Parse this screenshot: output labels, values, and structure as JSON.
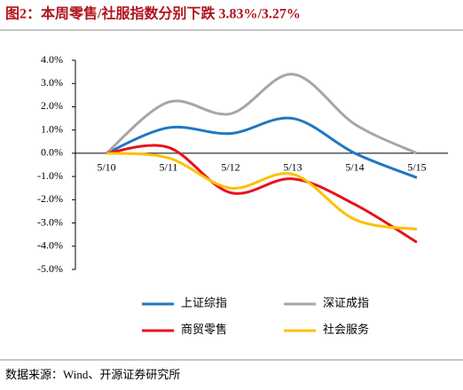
{
  "chart_data": {
    "type": "line",
    "title": "图2：本周零售/社服指数分别下跌 3.83%/3.27%",
    "source": "数据来源：Wind、开源证券研究所",
    "categories": [
      "5/10",
      "5/11",
      "5/12",
      "5/13",
      "5/14",
      "5/15"
    ],
    "series": [
      {
        "name": "上证综指",
        "color": "#1f77c4",
        "values": [
          0,
          1.1,
          0.85,
          1.5,
          0.0,
          -1.05
        ]
      },
      {
        "name": "深证成指",
        "color": "#a6a6a6",
        "values": [
          0,
          2.2,
          1.7,
          3.4,
          1.25,
          0.0
        ]
      },
      {
        "name": "商贸零售",
        "color": "#e8111b",
        "values": [
          0,
          0.25,
          -1.7,
          -1.1,
          -2.2,
          -3.83
        ]
      },
      {
        "name": "社会服务",
        "color": "#ffc000",
        "values": [
          0,
          -0.2,
          -1.5,
          -0.9,
          -2.85,
          -3.27
        ]
      }
    ],
    "ylim": [
      -5,
      4
    ],
    "yticks": [
      {
        "value": 4,
        "label": "4.0%"
      },
      {
        "value": 3,
        "label": "3.0%"
      },
      {
        "value": 2,
        "label": "2.0%"
      },
      {
        "value": 1,
        "label": "1.0%"
      },
      {
        "value": 0,
        "label": "0.0%"
      },
      {
        "value": -1,
        "label": "-1.0%"
      },
      {
        "value": -2,
        "label": "-2.0%"
      },
      {
        "value": -3,
        "label": "-3.0%"
      },
      {
        "value": -4,
        "label": "-4.0%"
      },
      {
        "value": -5,
        "label": "-5.0%"
      }
    ],
    "grid": false
  }
}
